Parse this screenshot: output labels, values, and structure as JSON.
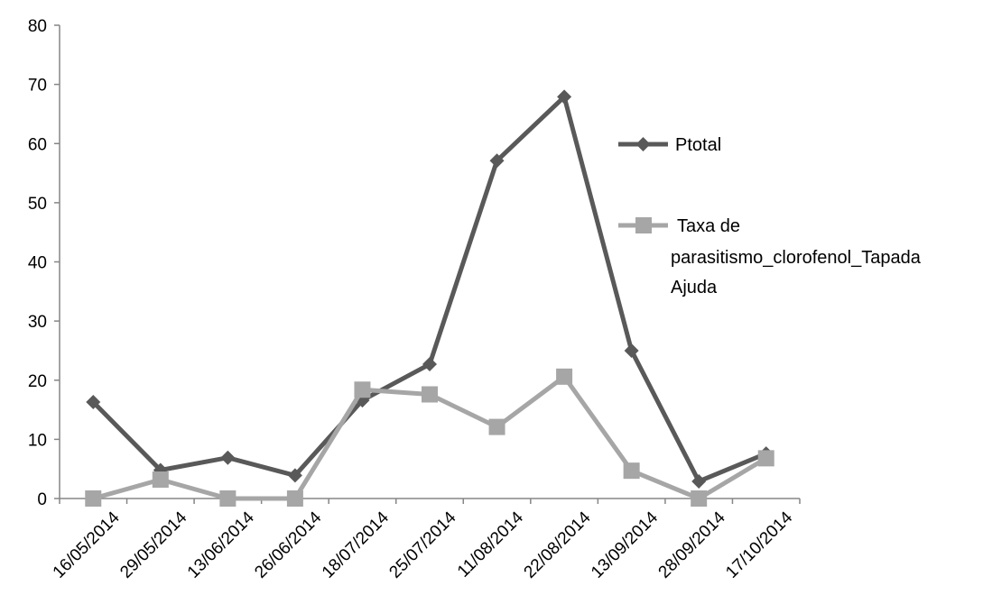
{
  "chart_data": {
    "type": "line",
    "categories": [
      "16/05/2014",
      "29/05/2014",
      "13/06/2014",
      "26/06/2014",
      "18/07/2014",
      "25/07/2014",
      "11/08/2014",
      "22/08/2014",
      "13/09/2014",
      "28/09/2014",
      "17/10/2014"
    ],
    "series": [
      {
        "name": "Ptotal",
        "values": [
          16.3,
          4.8,
          6.9,
          3.9,
          16.6,
          22.7,
          57.1,
          67.9,
          25.0,
          2.9,
          7.6
        ],
        "color": "#595959",
        "marker": "diamond"
      },
      {
        "name": "Taxa de parasitismo_clorofenol_Tapada Ajuda",
        "values": [
          0,
          3.2,
          0,
          0,
          18.4,
          17.6,
          12.1,
          20.6,
          4.7,
          0,
          6.8
        ],
        "color": "#a6a6a6",
        "marker": "square"
      }
    ],
    "yticks": [
      "0",
      "10",
      "20",
      "30",
      "40",
      "50",
      "60",
      "70",
      "80"
    ],
    "ylim": [
      0,
      80
    ],
    "legend_position": "right",
    "grid": false
  }
}
